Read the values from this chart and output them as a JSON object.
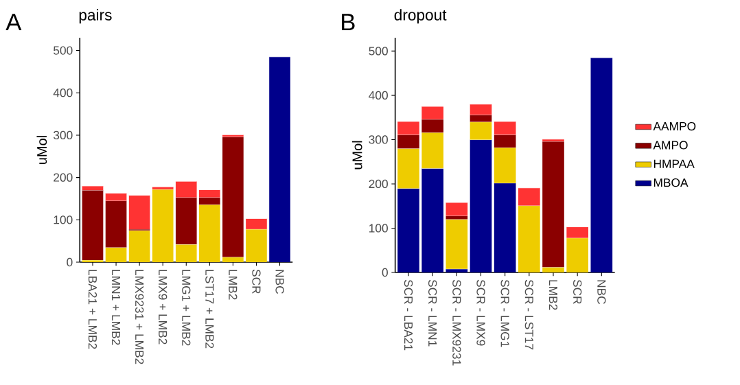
{
  "chart_data": [
    {
      "type": "bar",
      "title": "pairs",
      "annotations": [
        "A"
      ],
      "ylabel": "uMol",
      "stacked": true,
      "categories": [
        "LBA21 + LMB2",
        "LMN1 + LMB2",
        "LMX9231 + LMB2",
        "LMX9 + LMB2",
        "LMG1 + LMB2",
        "LST17 + LMB2",
        "LMB2",
        "SCR",
        "NBC"
      ],
      "series": [
        {
          "color": "#00008b",
          "values": [
            null,
            null,
            null,
            null,
            null,
            null,
            null,
            null,
            485
          ]
        },
        {
          "color": "#eecc00",
          "values": [
            5,
            35,
            75,
            172,
            42,
            136,
            12,
            78,
            null
          ]
        },
        {
          "color": "#8b0000",
          "values": [
            165,
            110,
            3,
            null,
            111,
            17,
            284,
            null,
            null
          ]
        },
        {
          "color": "#ff3333",
          "values": [
            10,
            18,
            80,
            6,
            38,
            18,
            5,
            25,
            null
          ]
        }
      ],
      "ylim": [
        0,
        530
      ],
      "yticks": [
        0,
        100,
        200,
        300,
        400,
        500
      ],
      "legend": false,
      "grid": false
    },
    {
      "type": "bar",
      "title": "dropout",
      "annotations": [
        "B"
      ],
      "ylabel": "uMol",
      "stacked": true,
      "categories": [
        "SCR - LBA21",
        "SCR - LMN1",
        "SCR - LMX9231",
        "SCR - LMX9",
        "SCR - LMG1",
        "SCR - LST17",
        "LMB2",
        "SCR",
        "NBC"
      ],
      "series": [
        {
          "name": "MBOA",
          "color": "#00008b",
          "values": [
            190,
            235,
            8,
            300,
            202,
            null,
            null,
            null,
            485
          ]
        },
        {
          "name": "HMPAA",
          "color": "#eecc00",
          "values": [
            90,
            81,
            112,
            40,
            80,
            151,
            12,
            78,
            null
          ]
        },
        {
          "name": "AMPO",
          "color": "#8b0000",
          "values": [
            31,
            30,
            8,
            16,
            29,
            null,
            284,
            null,
            null
          ]
        },
        {
          "name": "AAMPO",
          "color": "#ff3333",
          "values": [
            30,
            29,
            30,
            24,
            30,
            40,
            5,
            25,
            null
          ]
        }
      ],
      "ylim": [
        0,
        530
      ],
      "yticks": [
        0,
        100,
        200,
        300,
        400,
        500
      ],
      "legend": "right",
      "grid": false
    }
  ]
}
